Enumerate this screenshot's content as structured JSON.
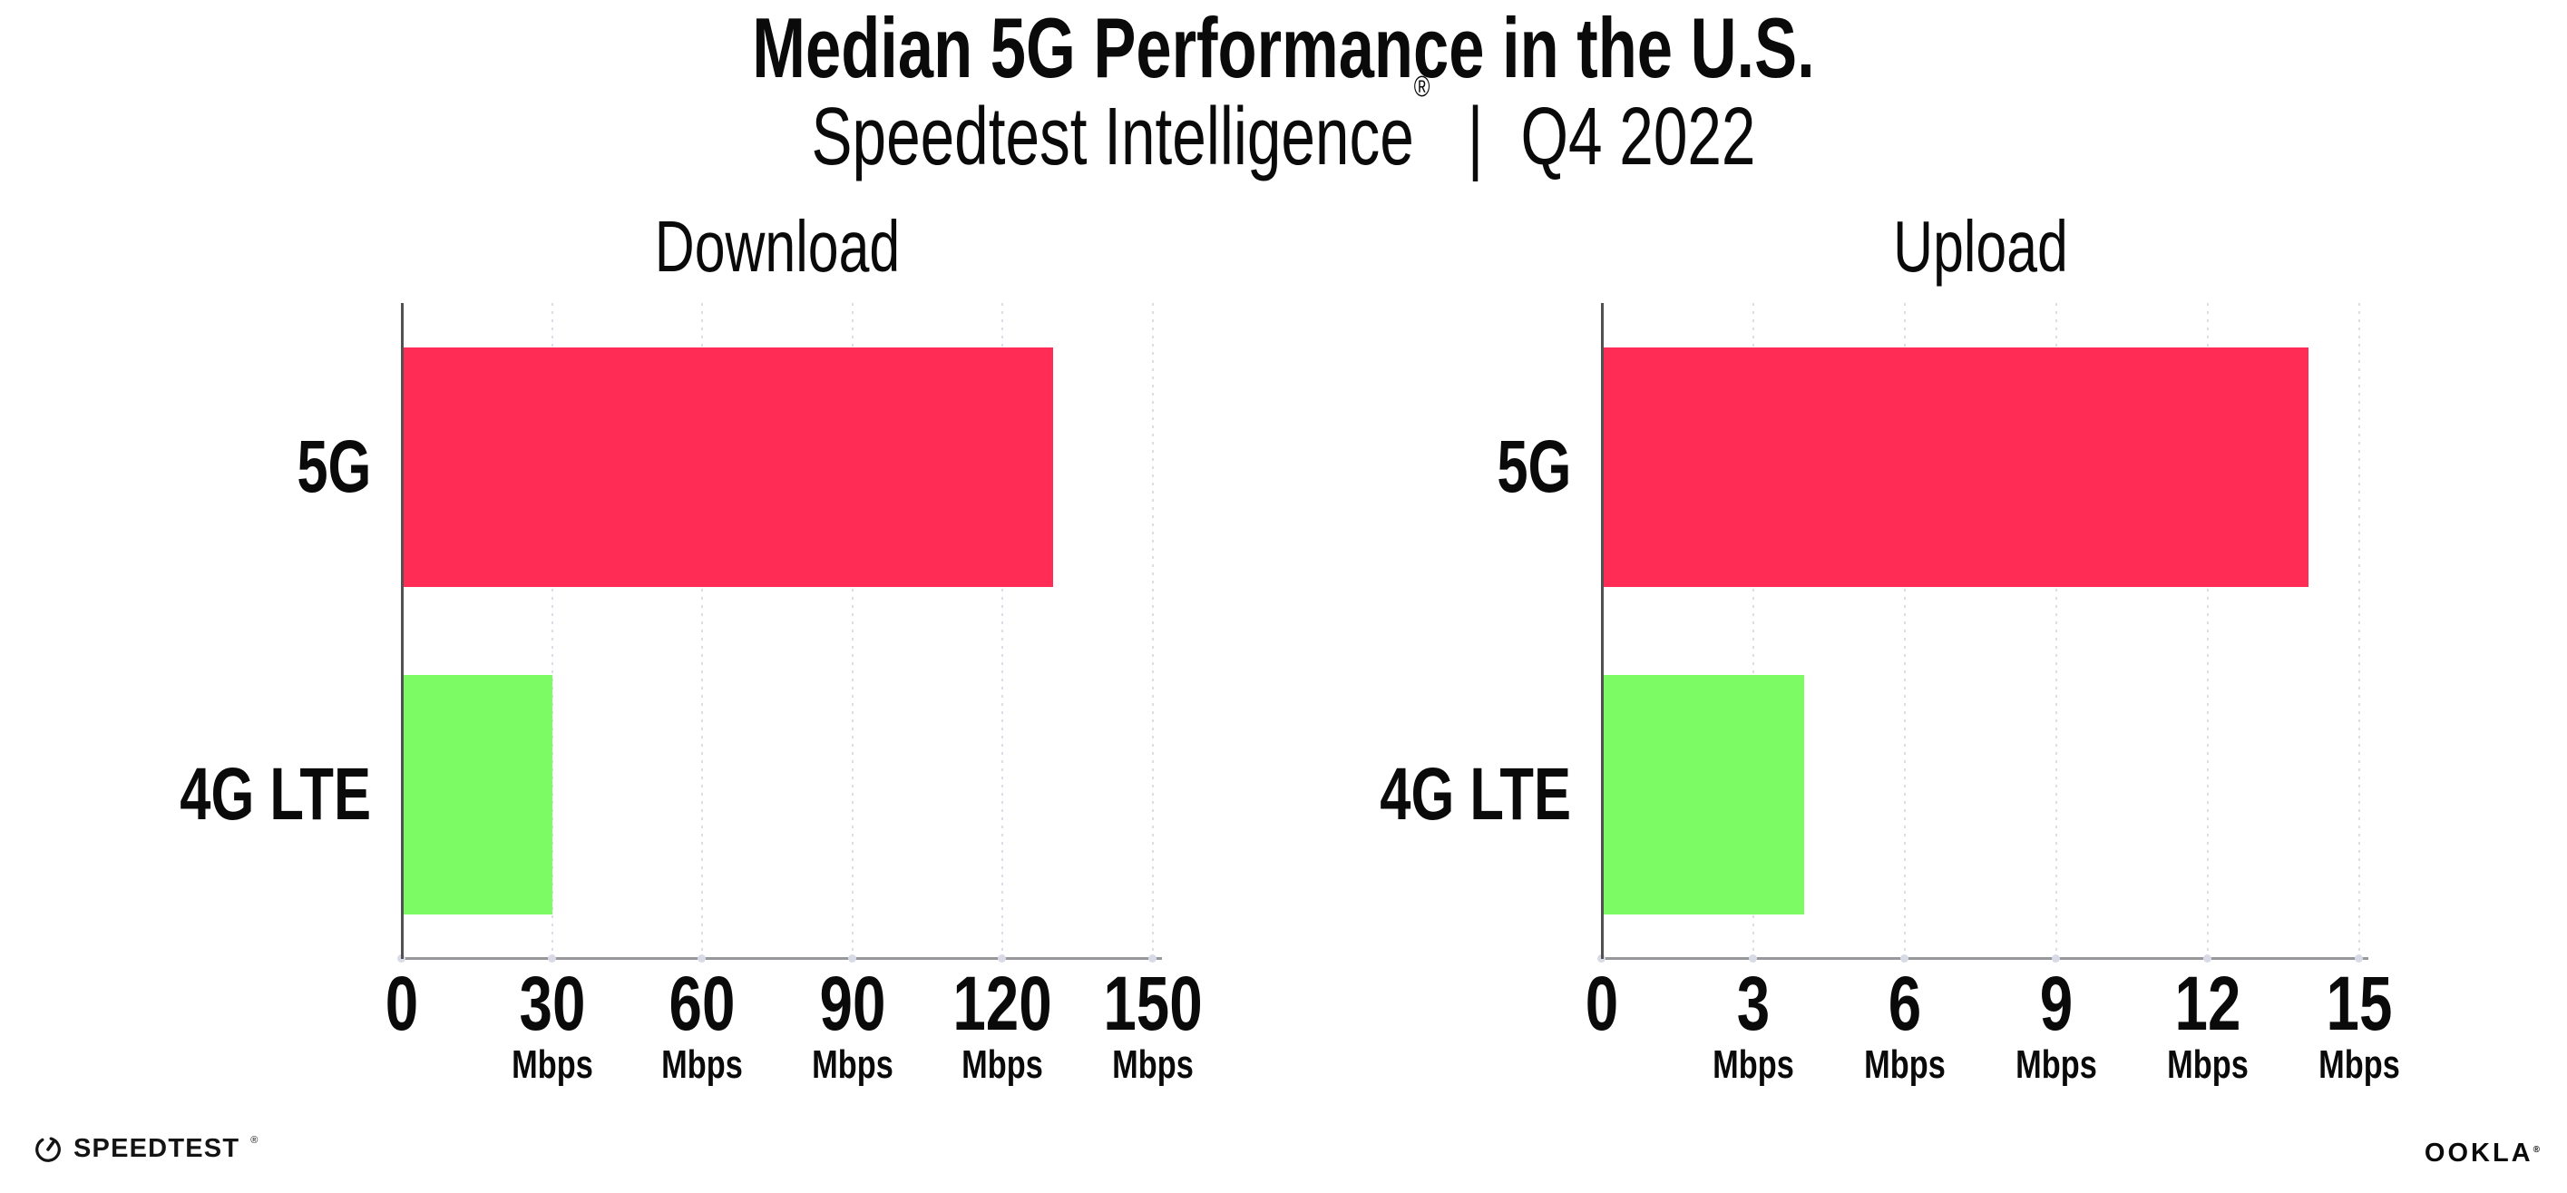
{
  "page": {
    "background": "#ffffff"
  },
  "header": {
    "title": "Median 5G Performance in the U.S.",
    "subtitle_brand": "Speedtest Intelligence",
    "subtitle_registered_mark": "®",
    "subtitle_separator": "|",
    "subtitle_period": "Q4 2022"
  },
  "chart_data": [
    {
      "type": "bar",
      "orientation": "horizontal",
      "title": "Download",
      "categories": [
        "5G",
        "4G LTE"
      ],
      "values": [
        130,
        30
      ],
      "unit": "Mbps",
      "xlim": [
        0,
        150
      ],
      "xticks": [
        0,
        30,
        60,
        90,
        120,
        150
      ],
      "tick_unit_label": "Mbps",
      "unit_label_on_zero": false,
      "bar_colors": [
        "#FF2D55",
        "#7DFB64"
      ],
      "grid": "vertical dotted",
      "legend_position": "none"
    },
    {
      "type": "bar",
      "orientation": "horizontal",
      "title": "Upload",
      "categories": [
        "5G",
        "4G LTE"
      ],
      "values": [
        14,
        4
      ],
      "unit": "Mbps",
      "xlim": [
        0,
        15
      ],
      "xticks": [
        0,
        3,
        6,
        9,
        12,
        15
      ],
      "tick_unit_label": "Mbps",
      "unit_label_on_zero": false,
      "bar_colors": [
        "#FF2D55",
        "#7DFB64"
      ],
      "grid": "vertical dotted",
      "legend_position": "none"
    }
  ],
  "footer": {
    "speedtest_logo_text": "SPEEDTEST",
    "speedtest_trademark": "®",
    "ookla_logo_text": "OOKLA",
    "ookla_trademark": "®"
  },
  "colors": {
    "bar_5g": "#FF2D55",
    "bar_4g_lte": "#7DFB64",
    "text": "#0A0A0B",
    "y_axis": "#515154",
    "x_axis": "#98989C",
    "gridline": "#DCDDE8",
    "tick_dot": "#D8DAE6"
  }
}
